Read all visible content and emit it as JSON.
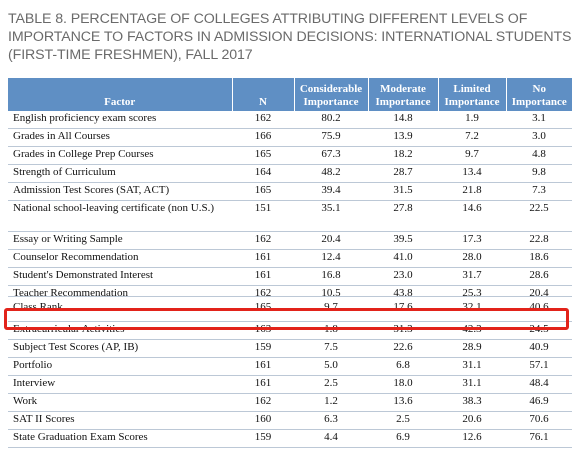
{
  "caption": "TABLE 8. PERCENTAGE OF COLLEGES ATTRIBUTING DIFFERENT LEVELS OF IMPORTANCE TO FACTORS IN ADMISSION DECISIONS: INTERNATIONAL STUDENTS (FIRST-TIME FRESHMEN), FALL 2017",
  "colors": {
    "header_bg": "#5f8fc4",
    "header_text": "#ffffff",
    "highlight_border": "#e2231a",
    "row_rule": "#bcc8d6"
  },
  "table": {
    "headers": {
      "factor": "Factor",
      "n": "N",
      "considerable_1": "Considerable",
      "considerable_2": "Importance",
      "moderate_1": "Moderate",
      "moderate_2": "Importance",
      "limited_1": "Limited",
      "limited_2": "Importance",
      "no_1": "No",
      "no_2": "Importance"
    },
    "rows": [
      {
        "factor": "English proficiency exam scores",
        "n": "162",
        "considerable": "80.2",
        "moderate": "14.8",
        "limited": "1.9",
        "no": "3.1"
      },
      {
        "factor": "Grades in All Courses",
        "n": "166",
        "considerable": "75.9",
        "moderate": "13.9",
        "limited": "7.2",
        "no": "3.0"
      },
      {
        "factor": "Grades in College Prep Courses",
        "n": "165",
        "considerable": "67.3",
        "moderate": "18.2",
        "limited": "9.7",
        "no": "4.8"
      },
      {
        "factor": "Strength of Curriculum",
        "n": "164",
        "considerable": "48.2",
        "moderate": "28.7",
        "limited": "13.4",
        "no": "9.8"
      },
      {
        "factor": "Admission Test Scores (SAT, ACT)",
        "n": "165",
        "considerable": "39.4",
        "moderate": "31.5",
        "limited": "21.8",
        "no": "7.3"
      },
      {
        "factor": "National school-leaving certificate (non U.S.)",
        "n": "151",
        "considerable": "35.1",
        "moderate": "27.8",
        "limited": "14.6",
        "no": "22.5"
      },
      {
        "factor": "Essay or Writing Sample",
        "n": "162",
        "considerable": "20.4",
        "moderate": "39.5",
        "limited": "17.3",
        "no": "22.8"
      },
      {
        "factor": "Counselor Recommendation",
        "n": "161",
        "considerable": "12.4",
        "moderate": "41.0",
        "limited": "28.0",
        "no": "18.6"
      },
      {
        "factor": "Student's Demonstrated Interest",
        "n": "161",
        "considerable": "16.8",
        "moderate": "23.0",
        "limited": "31.7",
        "no": "28.6"
      },
      {
        "factor": "Teacher Recommendation",
        "n": "162",
        "considerable": "10.5",
        "moderate": "43.8",
        "limited": "25.3",
        "no": "20.4"
      },
      {
        "factor": "Class Rank",
        "n": "165",
        "considerable": "9.7",
        "moderate": "17.6",
        "limited": "32.1",
        "no": "40.6"
      },
      {
        "factor": "Extracurricular Activities",
        "n": "163",
        "considerable": "1.8",
        "moderate": "31.3",
        "limited": "42.3",
        "no": "24.5"
      },
      {
        "factor": "Subject Test Scores (AP, IB)",
        "n": "159",
        "considerable": "7.5",
        "moderate": "22.6",
        "limited": "28.9",
        "no": "40.9"
      },
      {
        "factor": "Portfolio",
        "n": "161",
        "considerable": "5.0",
        "moderate": "6.8",
        "limited": "31.1",
        "no": "57.1"
      },
      {
        "factor": "Interview",
        "n": "161",
        "considerable": "2.5",
        "moderate": "18.0",
        "limited": "31.1",
        "no": "48.4"
      },
      {
        "factor": "Work",
        "n": "162",
        "considerable": "1.2",
        "moderate": "13.6",
        "limited": "38.3",
        "no": "46.9"
      },
      {
        "factor": "SAT II Scores",
        "n": "160",
        "considerable": "6.3",
        "moderate": "2.5",
        "limited": "20.6",
        "no": "70.6"
      },
      {
        "factor": "State Graduation Exam Scores",
        "n": "159",
        "considerable": "4.4",
        "moderate": "6.9",
        "limited": "12.6",
        "no": "76.1"
      }
    ]
  }
}
